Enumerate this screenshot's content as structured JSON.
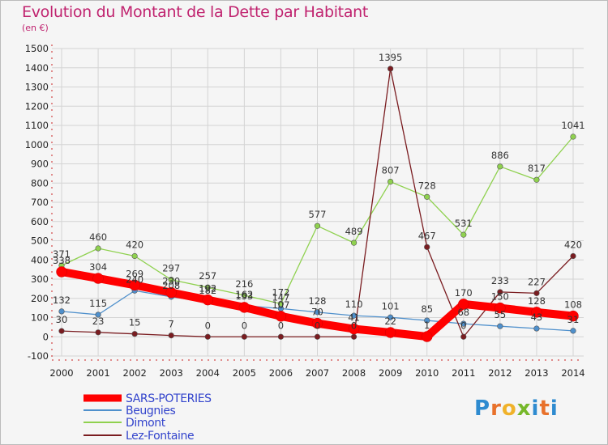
{
  "title": "Evolution du Montant de la Dette par Habitant",
  "subtitle": "(en €)",
  "logo": [
    "P",
    "r",
    "o",
    "x",
    "i",
    "t",
    "i"
  ],
  "chart_data": {
    "type": "line",
    "title": "Evolution du Montant de la Dette par Habitant",
    "ylabel": "(en €)",
    "x": [
      "2000",
      "2001",
      "2002",
      "2003",
      "2004",
      "2005",
      "2006",
      "2007",
      "2008",
      "2009",
      "2010",
      "2011",
      "2012",
      "2013",
      "2014"
    ],
    "ylim": [
      -100,
      1500
    ],
    "yticks": [
      "-100",
      "0",
      "100",
      "200",
      "300",
      "400",
      "500",
      "600",
      "700",
      "800",
      "900",
      "1000",
      "1100",
      "1200",
      "1300",
      "1400",
      "1500"
    ],
    "grid": true,
    "legend_placement": "bottom-left",
    "series": [
      {
        "name": "SARS-POTERIES",
        "color": "#ff0000",
        "values": [
          338,
          304,
          269,
          230,
          192,
          153,
          107,
          70,
          41,
          22,
          1,
          170,
          150,
          128,
          108
        ],
        "labels": [
          "338",
          "304",
          "269",
          "230",
          "192",
          "153",
          "107",
          "70",
          "41",
          "22",
          "1",
          "170",
          "150",
          "128",
          "108"
        ]
      },
      {
        "name": "Beugnies",
        "color": "#4f90cc",
        "values": [
          132,
          115,
          240,
          208,
          182,
          162,
          147,
          128,
          110,
          101,
          85,
          68,
          55,
          43,
          31
        ],
        "labels": [
          "132",
          "115",
          "240",
          "208",
          "182",
          "162",
          "147",
          "128",
          "110",
          "101",
          "85",
          "68",
          "55",
          "43",
          "31"
        ]
      },
      {
        "name": "Dimont",
        "color": "#8fd14f",
        "values": [
          371,
          460,
          420,
          297,
          257,
          216,
          172,
          577,
          489,
          807,
          728,
          531,
          886,
          817,
          1041
        ],
        "labels": [
          "371",
          "460",
          "420",
          "297",
          "257",
          "216",
          "172",
          "577",
          "489",
          "807",
          "728",
          "531",
          "886",
          "817",
          "1041"
        ]
      },
      {
        "name": "Lez-Fontaine",
        "color": "#7a1c20",
        "values": [
          30,
          23,
          15,
          7,
          0,
          0,
          0,
          0,
          0,
          1395,
          467,
          0,
          233,
          227,
          420
        ],
        "labels": [
          "30",
          "23",
          "15",
          "7",
          "0",
          "0",
          "0",
          "0",
          "0",
          "1395",
          "467",
          "0",
          "233",
          "227",
          "420"
        ]
      }
    ]
  }
}
